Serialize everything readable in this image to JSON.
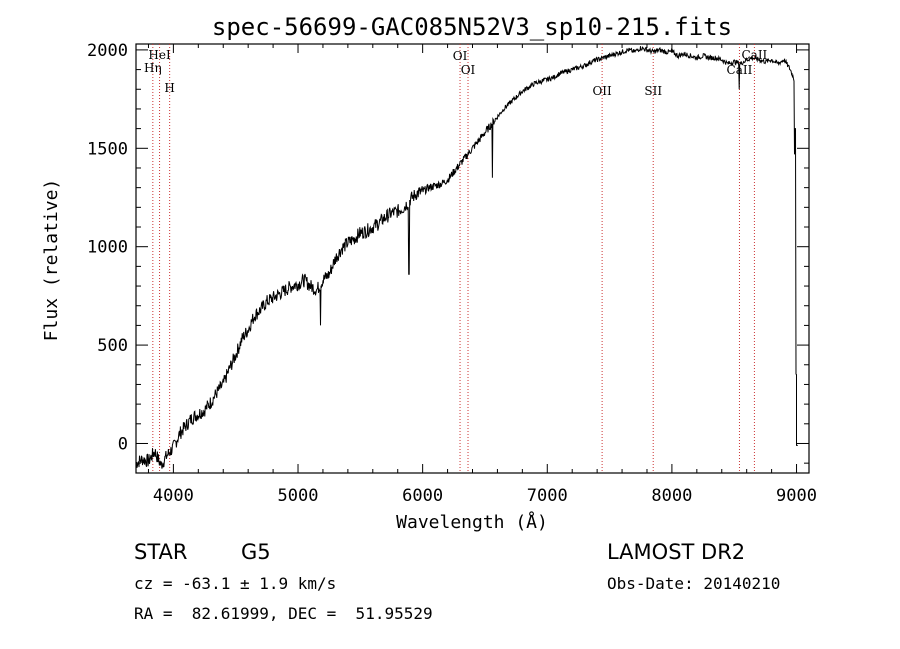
{
  "chart_data": {
    "type": "line",
    "title": "spec-56699-GAC085N52V3_sp10-215.fits",
    "xlabel": "Wavelength (Å)",
    "ylabel": "Flux (relative)",
    "xlim": [
      3700,
      9100
    ],
    "ylim": [
      -150,
      2030
    ],
    "x_ticks": [
      4000,
      5000,
      6000,
      7000,
      8000,
      9000
    ],
    "y_ticks": [
      0,
      500,
      1000,
      1500,
      2000
    ],
    "x_tick_labels": [
      "4000",
      "5000",
      "6000",
      "7000",
      "8000",
      "9000"
    ],
    "y_tick_labels": [
      "0",
      "500",
      "1000",
      "1500",
      "2000"
    ],
    "grid": false,
    "series": [
      {
        "x": [
          3700,
          3750,
          3800,
          3850,
          3900,
          3950,
          4000,
          4050,
          4100,
          4150,
          4200,
          4250,
          4300,
          4350,
          4400,
          4450,
          4500,
          4550,
          4600,
          4650,
          4700,
          4750,
          4800,
          4850,
          4900,
          4950,
          5000,
          5050,
          5100,
          5150,
          5200,
          5250,
          5300,
          5350,
          5400,
          5450,
          5500,
          5550,
          5600,
          5650,
          5700,
          5750,
          5800,
          5850,
          5900,
          5950,
          6000,
          6050,
          6100,
          6150,
          6200,
          6250,
          6300,
          6350,
          6400,
          6450,
          6500,
          6550,
          6600,
          6650,
          6700,
          6750,
          6800,
          6850,
          6900,
          6950,
          7000,
          7050,
          7100,
          7150,
          7200,
          7250,
          7300,
          7350,
          7400,
          7450,
          7500,
          7550,
          7600,
          7650,
          7700,
          7750,
          7800,
          7850,
          7900,
          7950,
          8000,
          8050,
          8100,
          8150,
          8200,
          8250,
          8300,
          8350,
          8400,
          8450,
          8500,
          8550,
          8600,
          8650,
          8700,
          8750,
          8800,
          8850,
          8900,
          8950,
          8980,
          9000
        ],
        "y": [
          -100,
          -80,
          -90,
          -40,
          -110,
          -60,
          -20,
          50,
          90,
          130,
          150,
          170,
          210,
          260,
          300,
          380,
          450,
          530,
          580,
          650,
          680,
          720,
          740,
          760,
          780,
          800,
          810,
          830,
          800,
          780,
          830,
          860,
          940,
          990,
          1020,
          1040,
          1070,
          1080,
          1100,
          1120,
          1150,
          1170,
          1180,
          1200,
          1240,
          1270,
          1280,
          1300,
          1310,
          1320,
          1340,
          1380,
          1420,
          1460,
          1500,
          1540,
          1580,
          1620,
          1660,
          1700,
          1730,
          1760,
          1790,
          1810,
          1830,
          1840,
          1850,
          1860,
          1880,
          1890,
          1900,
          1910,
          1920,
          1940,
          1950,
          1960,
          1970,
          1980,
          1990,
          2000,
          1990,
          2010,
          2000,
          1990,
          2000,
          1990,
          1990,
          1970,
          1980,
          1970,
          1960,
          1970,
          1960,
          1960,
          1950,
          1930,
          1940,
          1930,
          1950,
          1960,
          1950,
          1940,
          1950,
          1930,
          1950,
          1900,
          1850,
          -10
        ],
        "dips": [
          {
            "x": 5890,
            "y": 860
          },
          {
            "x": 6560,
            "y": 1350
          },
          {
            "x": 5180,
            "y": 600
          },
          {
            "x": 8540,
            "y": 1800
          },
          {
            "x": 8990,
            "y": 1600
          },
          {
            "x": 9000,
            "y": 350
          }
        ]
      }
    ],
    "lines": [
      {
        "label": "Hη",
        "x": 3835
      },
      {
        "label": "HeI",
        "x": 3889
      },
      {
        "label": "H",
        "x": 3970
      },
      {
        "label": "OI",
        "x": 6300
      },
      {
        "label": "OI",
        "x": 6364
      },
      {
        "label": "OII",
        "x": 7440
      },
      {
        "label": "SII",
        "x": 7850
      },
      {
        "label": "CaII",
        "x": 8542
      },
      {
        "label": "CaII",
        "x": 8662
      }
    ]
  },
  "info": {
    "class_label": "STAR",
    "subclass_label": "G5",
    "cz": "cz = -63.1 ± 1.9 km/s",
    "radec": "RA =  82.61999, DEC =  51.95529",
    "survey": "LAMOST DR2",
    "obsdate": "Obs-Date: 20140210"
  },
  "colors": {
    "line": "#cc3333",
    "axis": "#000000"
  }
}
